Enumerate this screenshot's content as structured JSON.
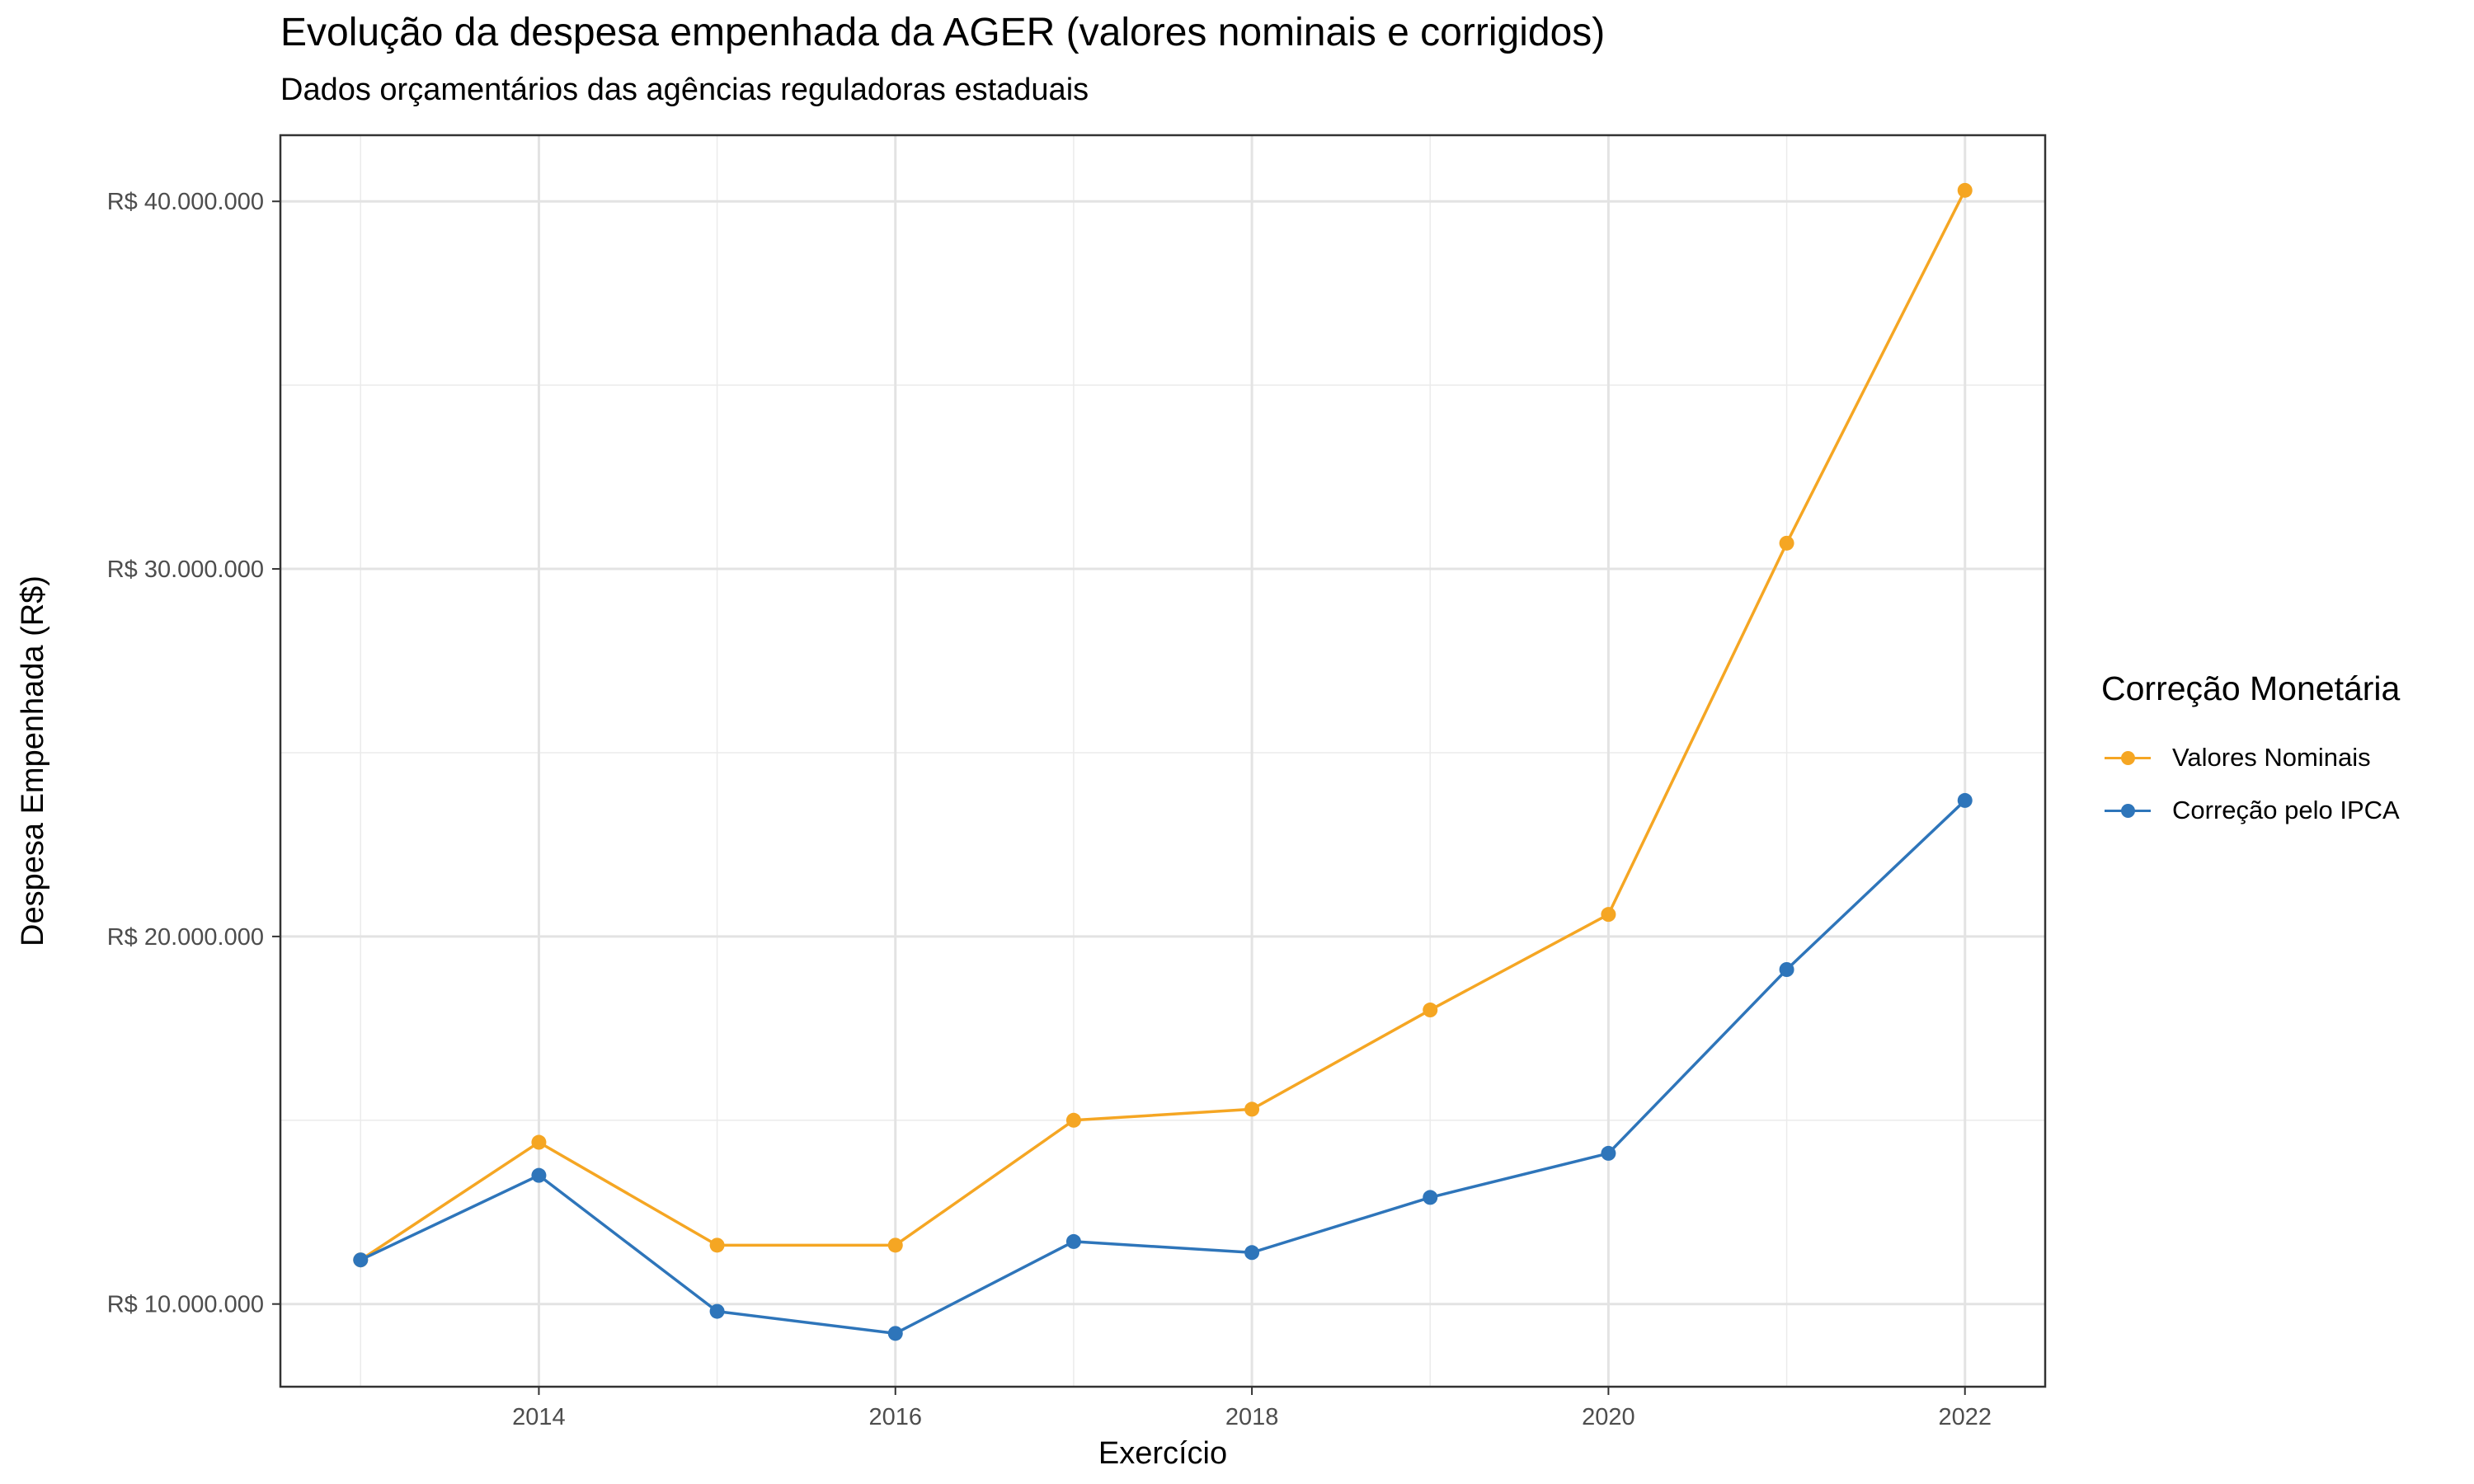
{
  "chart_data": {
    "type": "line",
    "title": "Evolução da despesa empenhada da AGER (valores nominais e corrigidos)",
    "subtitle": "Dados orçamentários das agências reguladoras estaduais",
    "xlabel": "Exercício",
    "ylabel": "Despesa Empenhada (R$)",
    "x": [
      2013,
      2014,
      2015,
      2016,
      2017,
      2018,
      2019,
      2020,
      2021,
      2022
    ],
    "xticks": [
      2014,
      2016,
      2018,
      2020,
      2022
    ],
    "xlim": [
      2012.55,
      2022.45
    ],
    "ylim": [
      7750000,
      41800000
    ],
    "yticks": [
      10000000,
      20000000,
      30000000,
      40000000
    ],
    "ytick_labels": [
      "R$ 10.000.000",
      "R$ 20.000.000",
      "R$ 30.000.000",
      "R$ 40.000.000"
    ],
    "grid": true,
    "legend": {
      "title": "Correção Monetária",
      "position": "right"
    },
    "series": [
      {
        "name": "Valores Nominais",
        "color": "#F5A623",
        "values": [
          11200000,
          14400000,
          11600000,
          11600000,
          15000000,
          15300000,
          18000000,
          20600000,
          30700000,
          40300000
        ]
      },
      {
        "name": "Correção pelo IPCA",
        "color": "#2E75BA",
        "values": [
          11200000,
          13500000,
          9800000,
          9200000,
          11700000,
          11400000,
          12900000,
          14100000,
          19100000,
          23700000
        ]
      }
    ]
  }
}
